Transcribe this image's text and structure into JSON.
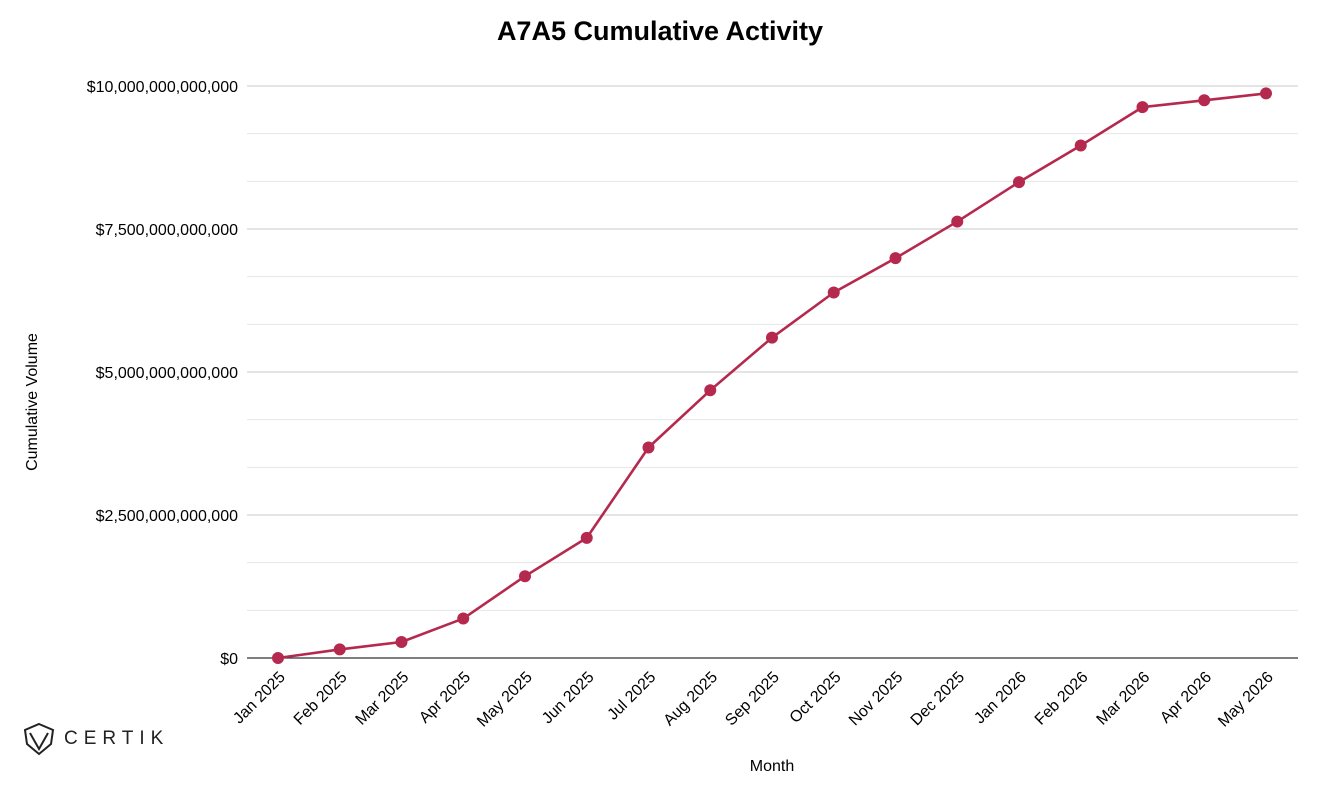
{
  "logo": {
    "text": "CERTIK"
  },
  "chart_data": {
    "type": "line",
    "title": "A7A5 Cumulative Activity",
    "xlabel": "Month",
    "ylabel": "Cumulative Volume",
    "categories": [
      "Jan 2025",
      "Feb 2025",
      "Mar 2025",
      "Apr 2025",
      "May 2025",
      "Jun 2025",
      "Jul 2025",
      "Aug 2025",
      "Sep 2025",
      "Oct 2025",
      "Nov 2025",
      "Dec 2025",
      "Jan 2026",
      "Feb 2026",
      "Mar 2026",
      "Apr 2026",
      "May 2026"
    ],
    "series": [
      {
        "values": [
          0,
          150000000000,
          280000000000,
          690000000000,
          1430000000000,
          2100000000000,
          3680000000000,
          4680000000000,
          5600000000000,
          6390000000000,
          6990000000000,
          7630000000000,
          8320000000000,
          8960000000000,
          9630000000000,
          9750000000000,
          9870000000000
        ]
      }
    ],
    "ylim": [
      0,
      10000000000000
    ],
    "yticks": [
      0,
      2500000000000,
      5000000000000,
      7500000000000,
      10000000000000
    ],
    "ytick_labels": [
      "$0",
      "$2,500,000,000,000",
      "$5,000,000,000,000",
      "$7,500,000,000,000",
      "$10,000,000,000,000"
    ],
    "grid": true,
    "line_color": "#b5294e"
  }
}
